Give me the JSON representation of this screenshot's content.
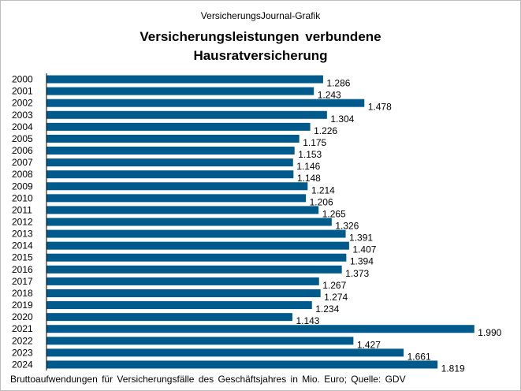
{
  "header": {
    "source": "VersicherungsJournal-Grafik",
    "title_line1": "Versicherungsleistungen  verbundene",
    "title_line2": "Hausratversicherung"
  },
  "footnote": "Bruttoaufwendungen  für Versicherungsfälle des Geschäftsjahres in Mio. Euro; Quelle: GDV",
  "colors": {
    "bar": "#005a8c"
  },
  "chart_data": {
    "type": "bar",
    "orientation": "horizontal",
    "title": "Versicherungsleistungen verbundene Hausratversicherung",
    "xlabel": "",
    "ylabel": "",
    "unit": "Mio. Euro",
    "grid": false,
    "xlim": [
      0,
      2000
    ],
    "categories": [
      "2000",
      "2001",
      "2002",
      "2003",
      "2004",
      "2005",
      "2006",
      "2007",
      "2008",
      "2009",
      "2010",
      "2011",
      "2012",
      "2013",
      "2014",
      "2015",
      "2016",
      "2017",
      "2018",
      "2019",
      "2020",
      "2021",
      "2022",
      "2023",
      "2024"
    ],
    "values": [
      1286,
      1243,
      1478,
      1304,
      1226,
      1175,
      1153,
      1146,
      1148,
      1214,
      1206,
      1265,
      1326,
      1391,
      1407,
      1394,
      1373,
      1267,
      1274,
      1234,
      1143,
      1990,
      1427,
      1661,
      1819
    ],
    "value_labels": [
      "1.286",
      "1.243",
      "1.478",
      "1.304",
      "1.226",
      "1.175",
      "1.153",
      "1.146",
      "1.148",
      "1.214",
      "1.206",
      "1.265",
      "1.326",
      "1.391",
      "1.407",
      "1.394",
      "1.373",
      "1.267",
      "1.274",
      "1.234",
      "1.143",
      "1.990",
      "1.427",
      "1.661",
      "1.819"
    ]
  }
}
